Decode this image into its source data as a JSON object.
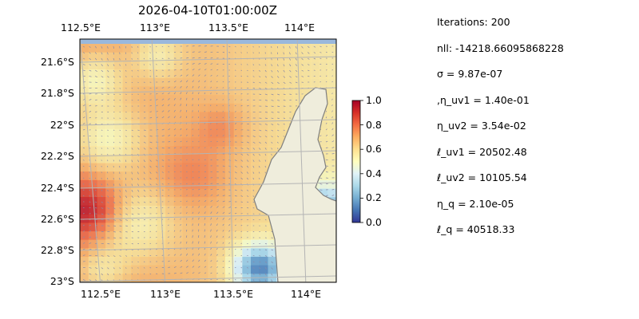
{
  "title": "2026-04-10T01:00:00Z",
  "map": {
    "top_lon_ticks": [
      "112.5°E",
      "113°E",
      "113.5°E",
      "114°E"
    ],
    "bottom_lon_ticks": [
      "112.5°E",
      "113°E",
      "113.5°E",
      "114°E"
    ],
    "lat_ticks": [
      "21.6°S",
      "21.8°S",
      "22°S",
      "22.2°S",
      "22.4°S",
      "22.6°S",
      "22.8°S",
      "23°S"
    ],
    "colors": {
      "ocean": "#9ab8dc",
      "land": "#efeddc",
      "coast": "#7f7f7f",
      "grid": "#b4b4b4"
    }
  },
  "colorbar": {
    "ticks": [
      "1.0",
      "0.8",
      "0.6",
      "0.4",
      "0.2",
      "0.0"
    ],
    "range": [
      0,
      1
    ],
    "colormap": "RdYlBu_r"
  },
  "stats": {
    "iterations": "Iterations: 200",
    "nll": "nll: -14218.66095868228",
    "sigma": "σ = 9.87e-07",
    "eta_uv1": ",η_uv1 = 1.40e-01",
    "eta_uv2": "η_uv2 = 3.54e-02",
    "ell_uv1": "ℓ_uv1 = 20502.48",
    "ell_uv2": "ℓ_uv2 = 10105.54",
    "eta_q": "η_q = 2.10e-05",
    "ell_q": "ℓ_q = 40518.33"
  }
}
